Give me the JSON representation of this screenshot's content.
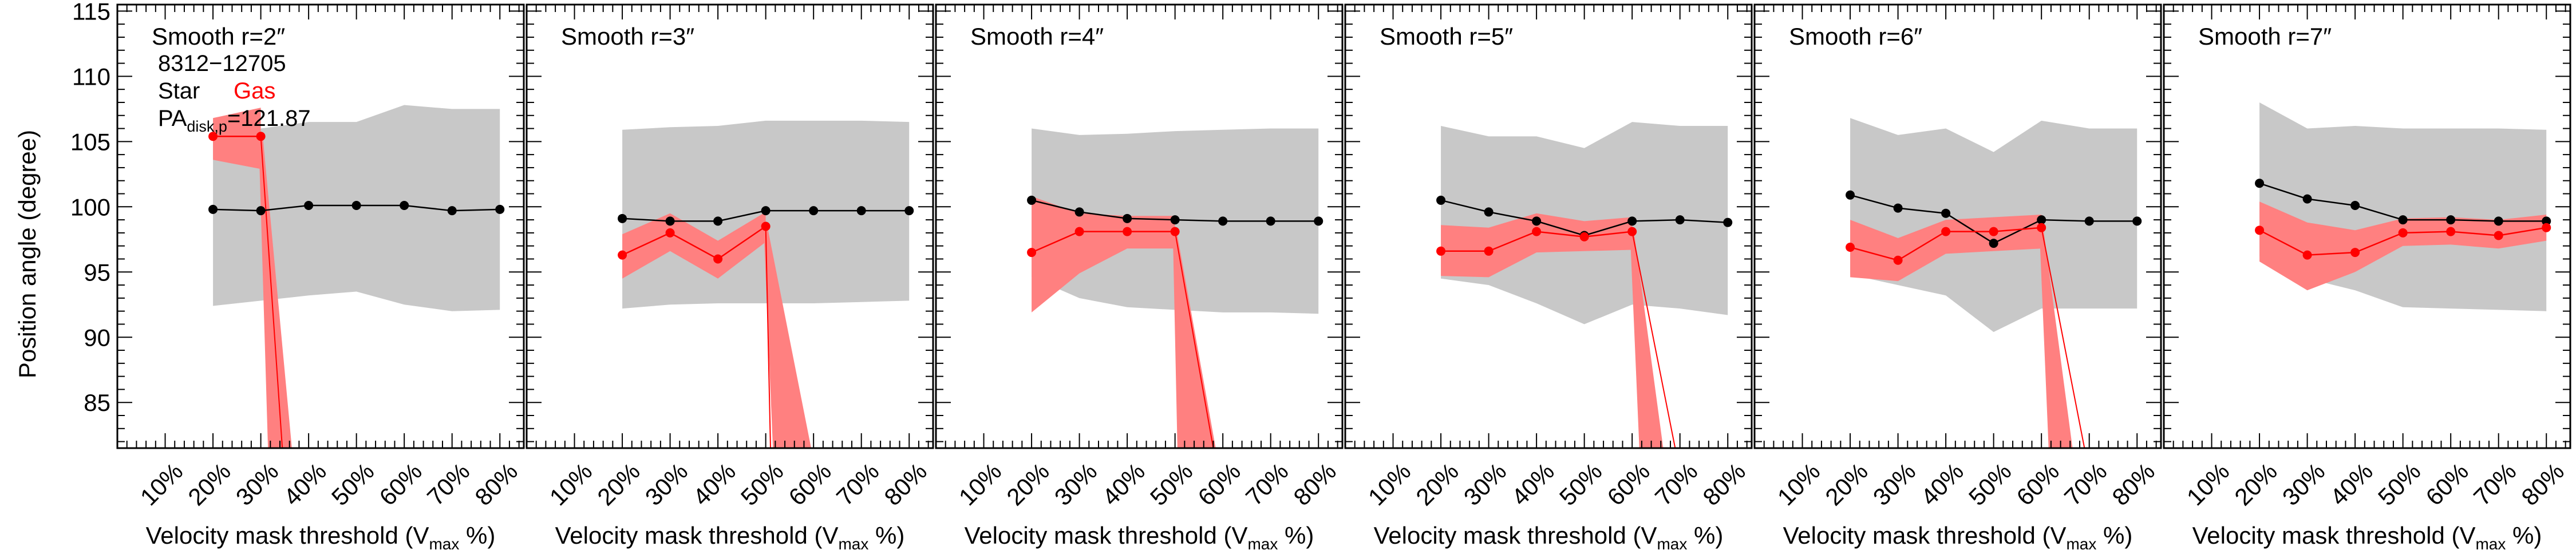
{
  "figure": {
    "ylabel": "Position angle (degree)",
    "xlabel_main": "Velocity mask threshold (V",
    "xlabel_sub": "max",
    "xlabel_end": " %)",
    "galaxy_id": "8312−12705",
    "legend_star": "Star",
    "legend_gas": "Gas",
    "pa_prefix": "PA",
    "pa_sub": "disk,p",
    "pa_value": "=121.87"
  },
  "colors": {
    "star": "#000000",
    "gas": "#ff0000",
    "gas_band": "#ff8080",
    "star_band": "#c8c8c8"
  },
  "chart_data": {
    "type": "line",
    "ylim": [
      81.5,
      115.5
    ],
    "xlim": [
      0,
      85
    ],
    "yticks": [
      85,
      90,
      95,
      100,
      105,
      110,
      115
    ],
    "xtick_labels": [
      "10%",
      "20%",
      "30%",
      "40%",
      "50%",
      "60%",
      "70%",
      "80%"
    ],
    "xtick_values": [
      10,
      20,
      30,
      40,
      50,
      60,
      70,
      80
    ],
    "panels": [
      {
        "title": "Smooth r=2″",
        "star": {
          "x": [
            20,
            30,
            40,
            50,
            60,
            70,
            80
          ],
          "y": [
            99.8,
            99.7,
            100.1,
            100.1,
            100.1,
            99.7,
            99.8
          ]
        },
        "star_band": {
          "x": [
            20,
            30,
            40,
            50,
            60,
            70,
            80
          ],
          "lo": [
            92.4,
            92.8,
            93.2,
            93.5,
            92.5,
            92.0,
            92.1
          ],
          "hi": [
            105.6,
            106.0,
            106.5,
            106.5,
            107.8,
            107.5,
            107.5
          ]
        },
        "gas": {
          "x": [
            20,
            30
          ],
          "y": [
            105.4,
            105.4
          ]
        },
        "gas_band": {
          "x": [
            20,
            30
          ],
          "lo": [
            103.6,
            102.9
          ],
          "hi": [
            106.8,
            107.6
          ]
        },
        "drop": {
          "x": 30,
          "y": 105.4,
          "x_lo": 31.5,
          "x_hi": 36.5,
          "x_line": 34.5
        }
      },
      {
        "title": "Smooth r=3″",
        "star": {
          "x": [
            20,
            30,
            40,
            50,
            60,
            70,
            80
          ],
          "y": [
            99.1,
            98.9,
            98.9,
            99.7,
            99.7,
            99.7,
            99.7
          ]
        },
        "star_band": {
          "x": [
            20,
            30,
            40,
            50,
            60,
            70,
            80
          ],
          "lo": [
            92.2,
            92.5,
            92.6,
            92.6,
            92.6,
            92.7,
            92.8
          ],
          "hi": [
            105.9,
            106.1,
            106.2,
            106.6,
            106.6,
            106.6,
            106.5
          ]
        },
        "gas": {
          "x": [
            20,
            30,
            40,
            50
          ],
          "y": [
            96.3,
            98.0,
            96.0,
            98.5
          ]
        },
        "gas_band": {
          "x": [
            20,
            30,
            40,
            50
          ],
          "lo": [
            94.5,
            96.6,
            94.5,
            97.3
          ],
          "hi": [
            97.9,
            99.5,
            97.4,
            99.6
          ]
        },
        "drop": {
          "x": 50,
          "y": 98.5,
          "x_lo": 51.5,
          "x_hi": 59.5,
          "x_line": 51.0
        }
      },
      {
        "title": "Smooth r=4″",
        "star": {
          "x": [
            20,
            30,
            40,
            50,
            60,
            70,
            80
          ],
          "y": [
            100.5,
            99.6,
            99.1,
            99.0,
            98.9,
            98.9,
            98.9
          ]
        },
        "star_band": {
          "x": [
            20,
            30,
            40,
            50,
            60,
            70,
            80
          ],
          "lo": [
            94.6,
            93.0,
            92.3,
            92.1,
            91.9,
            91.9,
            91.8
          ],
          "hi": [
            106.0,
            105.5,
            105.6,
            105.8,
            105.9,
            106.0,
            106.0
          ]
        },
        "gas": {
          "x": [
            20,
            30,
            40,
            50
          ],
          "y": [
            96.5,
            98.1,
            98.1,
            98.1
          ]
        },
        "gas_band": {
          "x": [
            20,
            30,
            40,
            50
          ],
          "lo": [
            91.9,
            94.9,
            96.8,
            96.8
          ],
          "hi": [
            100.8,
            99.5,
            99.3,
            99.3
          ]
        },
        "drop": {
          "x": 50,
          "y": 98.1,
          "x_lo": 50.5,
          "x_hi": 58.5,
          "x_line": 58.0
        }
      },
      {
        "title": "Smooth r=5″",
        "star": {
          "x": [
            20,
            30,
            40,
            50,
            60,
            70,
            80
          ],
          "y": [
            100.5,
            99.6,
            98.9,
            97.8,
            98.9,
            99.0,
            98.8
          ]
        },
        "star_band": {
          "x": [
            20,
            30,
            40,
            50,
            60,
            70,
            80
          ],
          "lo": [
            94.5,
            94.0,
            92.6,
            91.0,
            92.5,
            92.2,
            91.7
          ],
          "hi": [
            106.2,
            105.4,
            105.4,
            104.5,
            106.5,
            106.2,
            106.2
          ]
        },
        "gas": {
          "x": [
            20,
            30,
            40,
            50,
            60
          ],
          "y": [
            96.6,
            96.6,
            98.1,
            97.7,
            98.1
          ]
        },
        "gas_band": {
          "x": [
            20,
            30,
            40,
            50,
            60
          ],
          "lo": [
            94.7,
            94.6,
            96.5,
            96.6,
            96.7
          ],
          "hi": [
            98.6,
            98.4,
            99.5,
            98.9,
            99.2
          ]
        },
        "drop": {
          "x": 60,
          "y": 98.1,
          "x_lo": 61.5,
          "x_hi": 66.5,
          "x_line": 69.0
        }
      },
      {
        "title": "Smooth r=6″",
        "star": {
          "x": [
            20,
            30,
            40,
            50,
            60,
            70,
            80
          ],
          "y": [
            100.9,
            99.9,
            99.5,
            97.2,
            99.0,
            98.9,
            98.9
          ]
        },
        "star_band": {
          "x": [
            20,
            30,
            40,
            50,
            60,
            70,
            80
          ],
          "lo": [
            94.8,
            94.0,
            93.2,
            90.4,
            92.2,
            92.2,
            92.2
          ],
          "hi": [
            106.8,
            105.5,
            106.0,
            104.2,
            106.6,
            106.0,
            106.0
          ]
        },
        "gas": {
          "x": [
            20,
            30,
            40,
            50,
            60
          ],
          "y": [
            96.9,
            95.9,
            98.1,
            98.1,
            98.4
          ]
        },
        "gas_band": {
          "x": [
            20,
            30,
            40,
            50,
            60
          ],
          "lo": [
            94.6,
            94.3,
            96.4,
            96.6,
            96.8
          ],
          "hi": [
            99.0,
            97.6,
            99.0,
            99.2,
            99.4
          ]
        },
        "drop": {
          "x": 60,
          "y": 98.4,
          "x_lo": 61.5,
          "x_hi": 66.5,
          "x_line": 69.0
        }
      },
      {
        "title": "Smooth r=7″",
        "star": {
          "x": [
            20,
            30,
            40,
            50,
            60,
            70,
            80
          ],
          "y": [
            101.8,
            100.6,
            100.1,
            99.0,
            99.0,
            98.9,
            98.9
          ]
        },
        "star_band": {
          "x": [
            20,
            30,
            40,
            50,
            60,
            70,
            80
          ],
          "lo": [
            96.2,
            94.5,
            93.6,
            92.3,
            92.2,
            92.1,
            92.0
          ],
          "hi": [
            108.0,
            106.0,
            106.2,
            106.0,
            106.0,
            106.0,
            105.9
          ]
        },
        "gas": {
          "x": [
            20,
            30,
            40,
            50,
            60,
            70,
            80
          ],
          "y": [
            98.2,
            96.3,
            96.5,
            98.0,
            98.1,
            97.8,
            98.4
          ]
        },
        "gas_band": {
          "x": [
            20,
            30,
            40,
            50,
            60,
            70,
            80
          ],
          "lo": [
            95.8,
            93.6,
            95.0,
            97.0,
            97.1,
            96.8,
            97.4
          ],
          "hi": [
            100.4,
            98.8,
            98.2,
            99.1,
            99.2,
            99.0,
            99.4
          ]
        },
        "drop": null
      }
    ]
  }
}
